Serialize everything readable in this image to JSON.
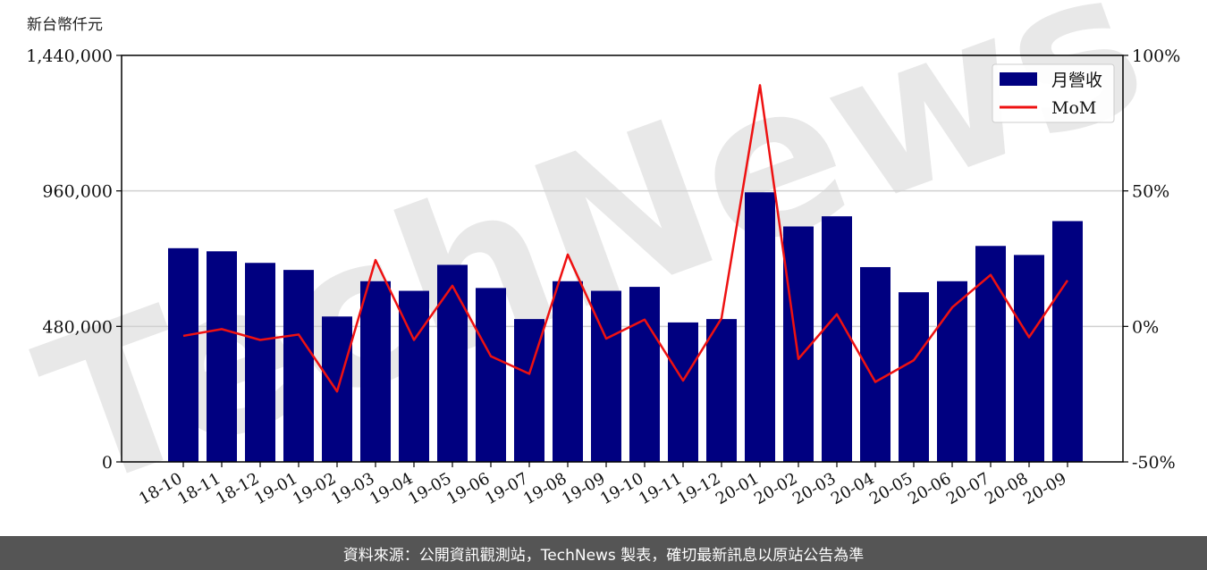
{
  "chart_data": {
    "type": "bar",
    "unit_label": "新台幣仟元",
    "categories": [
      "18-10",
      "18-11",
      "18-12",
      "19-01",
      "19-02",
      "19-03",
      "19-04",
      "19-05",
      "19-06",
      "19-07",
      "19-08",
      "19-09",
      "19-10",
      "19-11",
      "19-12",
      "20-01",
      "20-02",
      "20-03",
      "20-04",
      "20-05",
      "20-06",
      "20-07",
      "20-08",
      "20-09"
    ],
    "series": [
      {
        "name": "月營收",
        "type": "bar",
        "axis": "left",
        "color": "#000080",
        "values": [
          757000,
          746000,
          705000,
          680000,
          515000,
          640000,
          606000,
          698000,
          616000,
          506000,
          640000,
          606000,
          620000,
          494000,
          506000,
          955000,
          834000,
          870000,
          690000,
          601000,
          640000,
          765000,
          733000,
          853000
        ]
      },
      {
        "name": "MoM",
        "type": "line",
        "axis": "right",
        "color": "#ee1111",
        "values": [
          -3.5,
          -1.0,
          -5.0,
          -3.0,
          -24.0,
          24.5,
          -5.0,
          15.0,
          -11.0,
          -17.5,
          26.5,
          -4.5,
          2.5,
          -20.0,
          3.0,
          89.0,
          -12.0,
          4.5,
          -20.5,
          -12.5,
          7.0,
          19.0,
          -4.0,
          17.0
        ]
      }
    ],
    "y_left": {
      "range": [
        0,
        1440000
      ],
      "ticks": [
        0,
        480000,
        960000,
        1440000
      ],
      "tick_labels": [
        "0",
        "480,000",
        "960,000",
        "1,440,000"
      ]
    },
    "y_right": {
      "range": [
        -50,
        100
      ],
      "ticks": [
        -50,
        0,
        50,
        100
      ],
      "tick_labels": [
        "-50%",
        "0%",
        "50%",
        "100%"
      ]
    },
    "grid": "horizontal",
    "legend_position": "top-right",
    "watermark": "TechNews"
  },
  "footer": {
    "source_text": "資料來源：公開資訊觀測站，TechNews 製表，確切最新訊息以原站公告為準"
  }
}
